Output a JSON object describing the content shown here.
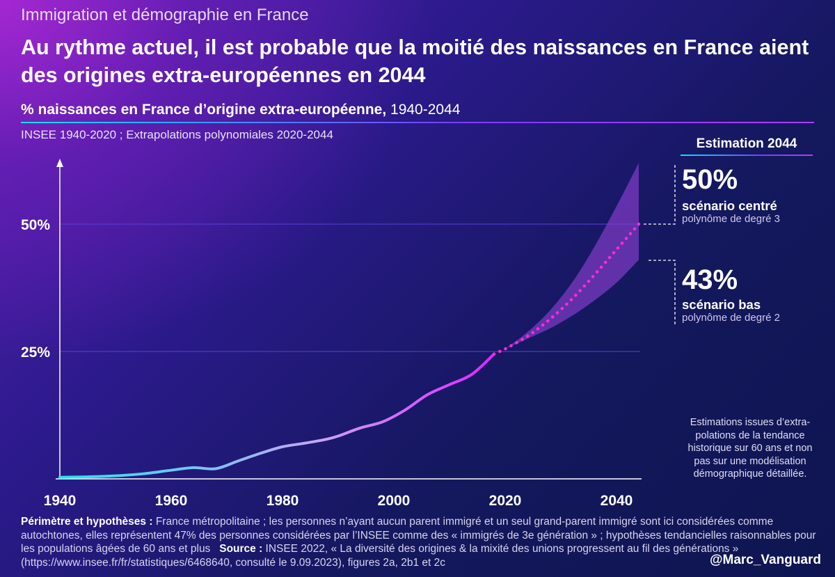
{
  "header": {
    "kicker": "Immigration et démographie en France",
    "title": "Au rythme actuel, il est probable que la moitié des naissances en France aient des origines extra-européennes en 2044",
    "subtitle_bold": "% naissances en France d’origine extra-européenne,",
    "subtitle_rest": " 1940-2044",
    "source_line": "INSEE 1940-2020 ; Extrapolations polynomiales 2020-2044"
  },
  "estimation": {
    "title": "Estimation 2044",
    "centre_value": "50%",
    "centre_label": "scénario centré",
    "centre_method": "polynôme de degré 3",
    "bas_value": "43%",
    "bas_label": "scénario bas",
    "bas_method": "polynôme de degré 2"
  },
  "note": "Estimations issues d’extra-polations de la tendance historique sur 60 ans et non pas sur une modélisation démographique détaillée.",
  "footer": {
    "perimetre_label": "Périmètre et hypothèses :",
    "perimetre_text": " France métropolitaine ; les personnes n’ayant aucun parent immigré et un seul grand-parent immigré sont ici considérées comme autochtones, elles représentent 47% des personnes considérées par l’INSEE comme des « immigrés de 3e génération » ; hypothèses tendancielles raisonnables pour les populations âgées de 60 ans et plus",
    "source_label": "Source :",
    "source_text": " INSEE 2022, « La diversité des origines & la mixité des unions progressent au fil des générations » (https://www.insee.fr/fr/statistiques/6468640, consulté le 9.09.2023), figures 2a, 2b1 et 2c"
  },
  "handle": "@Marc_Vanguard",
  "colors": {
    "historical_start": "#22e6f0",
    "historical_mid": "#c9a3f5",
    "historical_end": "#e020ff",
    "projection": "#ff2bd6",
    "band": "#8a3fd0",
    "gridline": "#5b3fd6"
  },
  "chart_data": {
    "type": "line",
    "title": "% naissances en France d’origine extra-européenne, 1940-2044",
    "xlabel": "",
    "ylabel": "",
    "xlim": [
      1940,
      2044
    ],
    "ylim": [
      0,
      62
    ],
    "x_ticks": [
      1940,
      1960,
      1980,
      2000,
      2020,
      2040
    ],
    "y_ticks": [
      25,
      50
    ],
    "y_tick_labels": [
      "25%",
      "50%"
    ],
    "grid": "horizontal",
    "series": [
      {
        "style": "solid",
        "x": [
          1940,
          1945,
          1950,
          1955,
          1960,
          1964,
          1968,
          1972,
          1976,
          1980,
          1984,
          1988,
          1990,
          1994,
          1998,
          2002,
          2006,
          2010,
          2014,
          2018
        ],
        "y": [
          0.3,
          0.4,
          0.6,
          1.0,
          1.7,
          2.2,
          2.0,
          3.5,
          5.0,
          6.3,
          7.0,
          7.8,
          8.4,
          10.0,
          11.2,
          13.5,
          16.5,
          18.5,
          20.5,
          24.5
        ]
      },
      {
        "style": "dotted",
        "x": [
          2020,
          2024,
          2028,
          2032,
          2036,
          2040,
          2044
        ],
        "y": [
          25.5,
          28.0,
          31.3,
          35.3,
          40.0,
          45.0,
          50.0
        ]
      }
    ],
    "band": {
      "x": [
        2020,
        2024,
        2028,
        2032,
        2036,
        2040,
        2044
      ],
      "lower": [
        25.5,
        27.5,
        29.5,
        32.0,
        35.0,
        38.5,
        43.0
      ],
      "upper": [
        25.5,
        28.8,
        33.0,
        38.5,
        45.5,
        53.5,
        62.0
      ]
    }
  }
}
